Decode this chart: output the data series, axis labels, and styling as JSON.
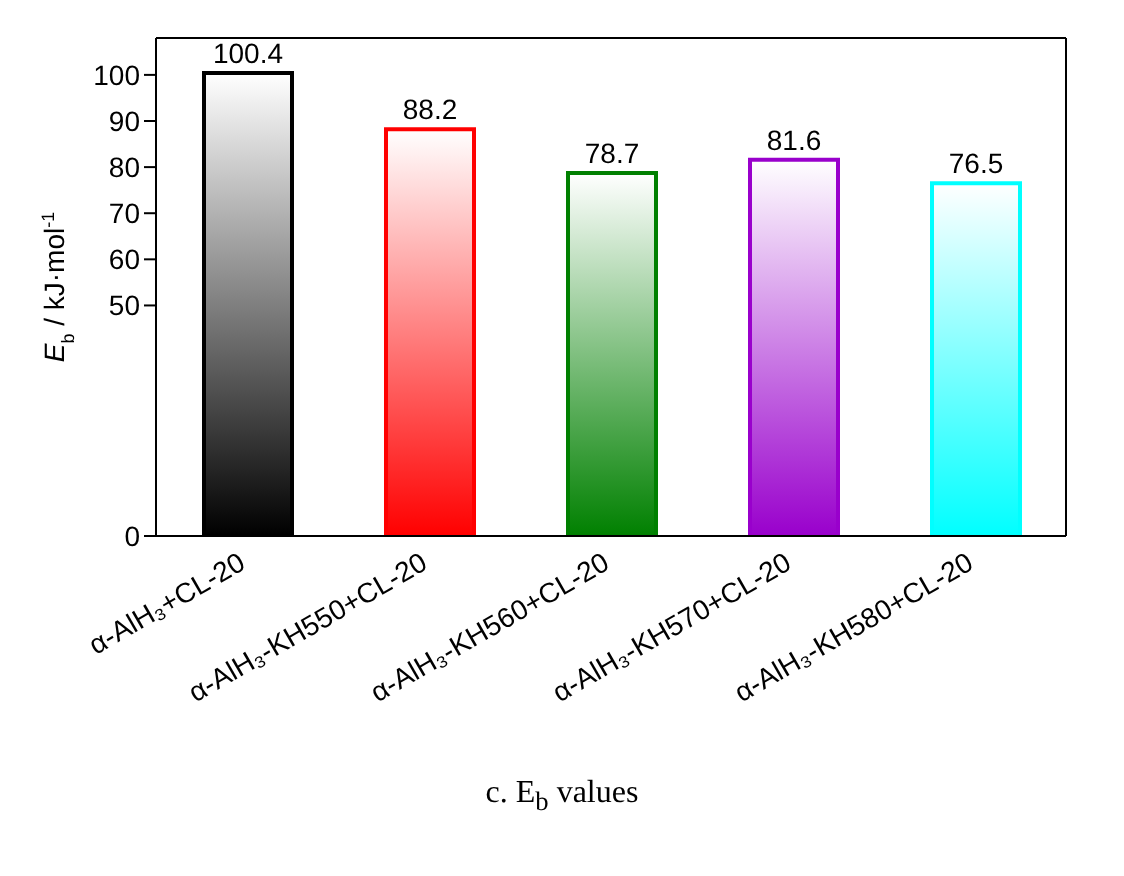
{
  "chart_data": {
    "type": "bar",
    "ylabel": "E$_{b}$ / kJ·mol$^{-1}$",
    "categories": [
      "α-AlH₃+CL-20",
      "α-AlH₃-KH550+CL-20",
      "α-AlH₃-KH560+CL-20",
      "α-AlH₃-KH570+CL-20",
      "α-AlH₃-KH580+CL-20"
    ],
    "values": [
      100.4,
      88.2,
      78.7,
      81.6,
      76.5
    ],
    "colors": [
      "#000000",
      "#ff0000",
      "#008000",
      "#9900cc",
      "#00ffff"
    ],
    "ylim": [
      0,
      108
    ],
    "yticks": [
      0,
      50,
      60,
      70,
      80,
      90,
      100
    ],
    "data_labels": true,
    "annotations": [
      "c. E$_{b}$ values"
    ]
  }
}
